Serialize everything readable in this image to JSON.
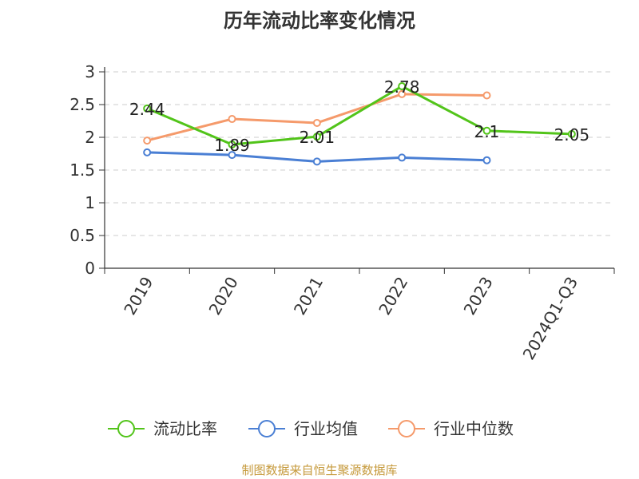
{
  "chart_data": {
    "type": "line",
    "title": "历年流动比率变化情况",
    "categories": [
      "2019",
      "2020",
      "2021",
      "2022",
      "2023",
      "2024Q1-Q3"
    ],
    "ylim": [
      0,
      3
    ],
    "yticks": [
      "0",
      "0.5",
      "1",
      "1.5",
      "2",
      "2.5",
      "3"
    ],
    "grid": true,
    "legend_position": "bottom",
    "series": [
      {
        "name": "流动比率",
        "color": "#52c41a",
        "values": [
          2.44,
          1.89,
          2.01,
          2.78,
          2.1,
          2.05
        ],
        "labels": [
          "2.44",
          "1.89",
          "2.01",
          "2.78",
          "2.1",
          "2.05"
        ]
      },
      {
        "name": "行业均值",
        "color": "#4a7fd4",
        "values": [
          1.77,
          1.73,
          1.63,
          1.69,
          1.65,
          null
        ]
      },
      {
        "name": "行业中位数",
        "color": "#f59a6b",
        "values": [
          1.95,
          2.28,
          2.22,
          2.66,
          2.64,
          null
        ]
      }
    ]
  },
  "source": "制图数据来自恒生聚源数据库"
}
